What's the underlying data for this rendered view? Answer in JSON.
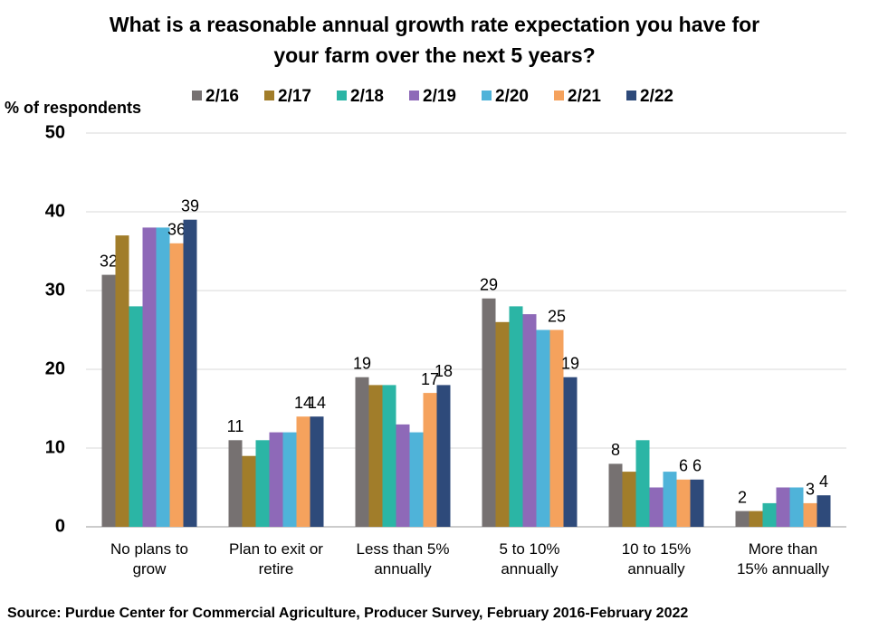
{
  "chart_data": {
    "type": "bar",
    "title": "What is a reasonable annual growth rate expectation you have for your farm over the next 5 years?",
    "y_label": "% of respondents",
    "source": "Source: Purdue Center for Commercial Agriculture, Producer Survey, February 2016-February 2022",
    "categories": [
      "No plans to grow",
      "Plan to exit or retire",
      "Less than 5% annually",
      "5 to 10% annually",
      "10 to 15% annually",
      "More than 15% annually"
    ],
    "series": [
      {
        "name": "2/16",
        "color": "#767171",
        "values": [
          32,
          11,
          19,
          29,
          8,
          2
        ],
        "show_labels": true
      },
      {
        "name": "2/17",
        "color": "#a17d2a",
        "values": [
          37,
          9,
          18,
          26,
          7,
          2
        ],
        "show_labels": false
      },
      {
        "name": "2/18",
        "color": "#2bb5a5",
        "values": [
          28,
          11,
          18,
          28,
          11,
          3
        ],
        "show_labels": false
      },
      {
        "name": "2/19",
        "color": "#8e69b8",
        "values": [
          38,
          12,
          13,
          27,
          5,
          5
        ],
        "show_labels": false
      },
      {
        "name": "2/20",
        "color": "#4fb3d9",
        "values": [
          38,
          12,
          12,
          25,
          7,
          5
        ],
        "show_labels": false
      },
      {
        "name": "2/21",
        "color": "#f5a25d",
        "values": [
          36,
          14,
          17,
          25,
          6,
          3
        ],
        "show_labels": true
      },
      {
        "name": "2/22",
        "color": "#2e4a7a",
        "values": [
          39,
          14,
          18,
          19,
          6,
          4
        ],
        "show_labels": true
      }
    ],
    "ylim": [
      0,
      50
    ],
    "yticks": [
      0,
      10,
      20,
      30,
      40,
      50
    ],
    "grid": true,
    "legend": "top"
  }
}
